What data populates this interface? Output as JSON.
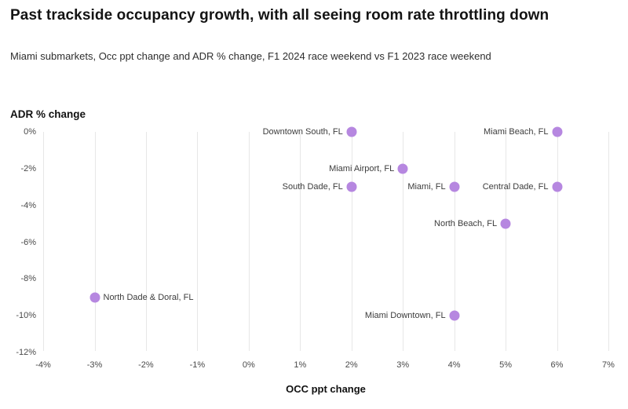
{
  "chart_data": {
    "type": "scatter",
    "title": "Past trackside occupancy growth, with all seeing room rate throttling down",
    "subtitle": "Miami submarkets, Occ ppt change and ADR % change, F1 2024 race weekend vs F1 2023 race weekend",
    "xlabel": "OCC ppt change",
    "ylabel": "ADR % change",
    "xlim": [
      -4,
      7
    ],
    "ylim": [
      -12,
      0
    ],
    "x_ticks": {
      "values": [
        -4,
        -3,
        -2,
        -1,
        0,
        1,
        2,
        3,
        4,
        5,
        6,
        7
      ],
      "labels": [
        "-4%",
        "-3%",
        "-2%",
        "-1%",
        "0%",
        "1%",
        "2%",
        "3%",
        "4%",
        "5%",
        "6%",
        "7%"
      ]
    },
    "y_ticks": {
      "values": [
        0,
        -2,
        -4,
        -6,
        -8,
        -10,
        -12
      ],
      "labels": [
        "0%",
        "-2%",
        "-4%",
        "-6%",
        "-8%",
        "-10%",
        "-12%"
      ]
    },
    "grid": "vertical-only",
    "legend": "none",
    "marker_color": "#b687e0",
    "points": [
      {
        "label": "Downtown South, FL",
        "x": 2,
        "y": 0,
        "label_side": "left"
      },
      {
        "label": "Miami Beach, FL",
        "x": 6,
        "y": 0,
        "label_side": "left"
      },
      {
        "label": "Miami Airport, FL",
        "x": 3,
        "y": -2,
        "label_side": "left"
      },
      {
        "label": "South Dade, FL",
        "x": 2,
        "y": -3,
        "label_side": "left"
      },
      {
        "label": "Miami, FL",
        "x": 4,
        "y": -3,
        "label_side": "left"
      },
      {
        "label": "Central Dade, FL",
        "x": 6,
        "y": -3,
        "label_side": "left"
      },
      {
        "label": "North Beach, FL",
        "x": 5,
        "y": -5,
        "label_side": "left"
      },
      {
        "label": "North Dade & Doral, FL",
        "x": -3,
        "y": -9,
        "label_side": "right"
      },
      {
        "label": "Miami Downtown, FL",
        "x": 4,
        "y": -10,
        "label_side": "left"
      }
    ]
  }
}
